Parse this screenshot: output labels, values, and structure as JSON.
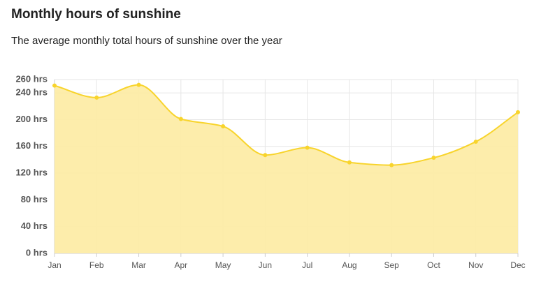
{
  "chart_data": {
    "type": "area",
    "title": "Monthly hours of sunshine",
    "subtitle": "The average monthly total hours of sunshine over the year",
    "categories": [
      "Jan",
      "Feb",
      "Mar",
      "Apr",
      "May",
      "Jun",
      "Jul",
      "Aug",
      "Sep",
      "Oct",
      "Nov",
      "Dec"
    ],
    "values": [
      251,
      233,
      252,
      201,
      190,
      147,
      158,
      136,
      132,
      143,
      167,
      211
    ],
    "color": "#f8d42c",
    "fill": "#fdeca6",
    "ylim": [
      0,
      260
    ],
    "yticks": [
      {
        "value": 0,
        "label": "0 hrs"
      },
      {
        "value": 40,
        "label": "40 hrs"
      },
      {
        "value": 80,
        "label": "80 hrs"
      },
      {
        "value": 120,
        "label": "120 hrs"
      },
      {
        "value": 160,
        "label": "160 hrs"
      },
      {
        "value": 200,
        "label": "200 hrs"
      },
      {
        "value": 240,
        "label": "240 hrs"
      },
      {
        "value": 260,
        "label": "260 hrs"
      }
    ],
    "grid": true
  }
}
